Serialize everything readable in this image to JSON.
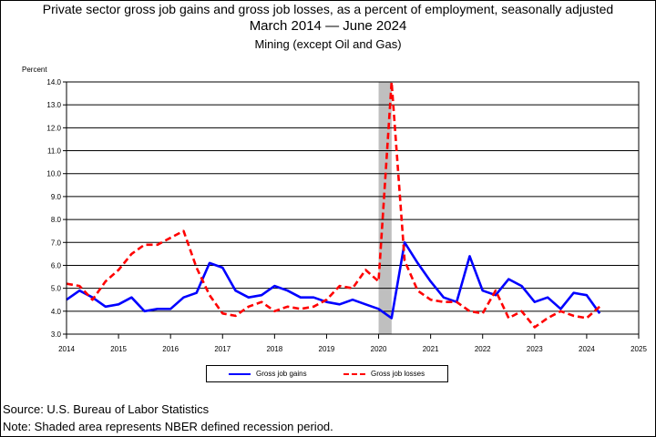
{
  "title_lines": [
    "Private sector gross job gains and gross job losses, as a percent of employment, seasonally adjusted",
    "March 2014  — June 2024",
    "Mining (except Oil and Gas)"
  ],
  "footer": {
    "source": "Source: U.S. Bureau of Labor Statistics",
    "note": "Note: Shaded area represents NBER defined recession period."
  },
  "colors": {
    "gains": "#0000ff",
    "losses": "#ff0000",
    "recession": "#bfbfbf",
    "grid": "#000000"
  },
  "chart_data": {
    "type": "line",
    "title": "Private sector gross job gains and gross job losses, as a percent of employment, seasonally adjusted",
    "subtitle": "Mining (except Oil and Gas)",
    "ylabel": "Percent",
    "xlabel": "",
    "xlim": [
      2014,
      2025
    ],
    "ylim": [
      3.0,
      14.0
    ],
    "x_ticks": [
      "2014",
      "2015",
      "2016",
      "2017",
      "2018",
      "2019",
      "2020",
      "2021",
      "2022",
      "2023",
      "2024",
      "2025"
    ],
    "y_ticks": [
      "3.0",
      "4.0",
      "5.0",
      "6.0",
      "7.0",
      "8.0",
      "9.0",
      "10.0",
      "11.0",
      "12.0",
      "13.0",
      "14.0"
    ],
    "grid": true,
    "legend_position": "bottom",
    "recession": {
      "start": "2020-Q1",
      "end": "2020-Q2"
    },
    "x": [
      "2014-Q1",
      "2014-Q2",
      "2014-Q3",
      "2014-Q4",
      "2015-Q1",
      "2015-Q2",
      "2015-Q3",
      "2015-Q4",
      "2016-Q1",
      "2016-Q2",
      "2016-Q3",
      "2016-Q4",
      "2017-Q1",
      "2017-Q2",
      "2017-Q3",
      "2017-Q4",
      "2018-Q1",
      "2018-Q2",
      "2018-Q3",
      "2018-Q4",
      "2019-Q1",
      "2019-Q2",
      "2019-Q3",
      "2019-Q4",
      "2020-Q1",
      "2020-Q2",
      "2020-Q3",
      "2020-Q4",
      "2021-Q1",
      "2021-Q2",
      "2021-Q3",
      "2021-Q4",
      "2022-Q1",
      "2022-Q2",
      "2022-Q3",
      "2022-Q4",
      "2023-Q1",
      "2023-Q2",
      "2023-Q3",
      "2023-Q4",
      "2024-Q1",
      "2024-Q2"
    ],
    "series": [
      {
        "name": "Gross job gains",
        "style": "solid",
        "values": [
          4.5,
          4.9,
          4.6,
          4.2,
          4.3,
          4.6,
          4.0,
          4.1,
          4.1,
          4.6,
          4.8,
          6.1,
          5.9,
          4.9,
          4.6,
          4.7,
          5.1,
          4.9,
          4.6,
          4.6,
          4.4,
          4.3,
          4.5,
          4.3,
          4.1,
          3.7,
          7.0,
          6.1,
          5.3,
          4.6,
          4.4,
          6.4,
          4.9,
          4.7,
          5.4,
          5.1,
          4.4,
          4.6,
          4.1,
          4.8,
          4.7,
          3.9
        ]
      },
      {
        "name": "Gross job losses",
        "style": "dashed",
        "values": [
          5.2,
          5.1,
          4.5,
          5.3,
          5.8,
          6.5,
          6.9,
          6.9,
          7.2,
          7.5,
          5.9,
          4.7,
          3.9,
          3.8,
          4.2,
          4.4,
          4.0,
          4.2,
          4.1,
          4.2,
          4.5,
          5.1,
          5.0,
          5.8,
          5.3,
          14.0,
          6.2,
          4.9,
          4.5,
          4.4,
          4.4,
          4.0,
          3.9,
          4.9,
          3.7,
          4.0,
          3.3,
          3.7,
          4.0,
          3.8,
          3.7,
          4.2
        ]
      }
    ]
  }
}
